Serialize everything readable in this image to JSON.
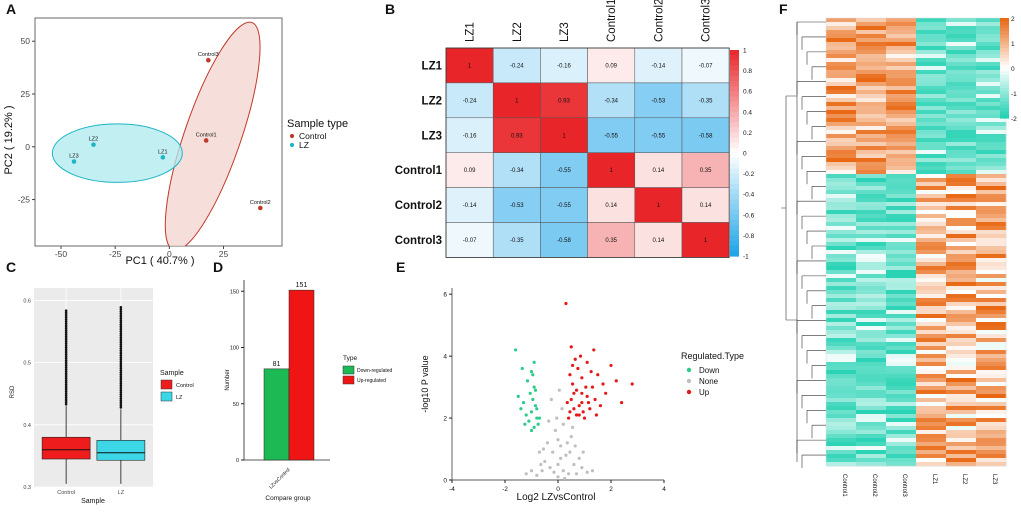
{
  "panel_labels": [
    "A",
    "B",
    "C",
    "D",
    "E",
    "F"
  ],
  "chart_data": [
    {
      "panel": "A",
      "type": "scatter",
      "xlabel": "PC1 ( 40.7% )",
      "ylabel": "PC2 ( 19.2% )",
      "xlim": [
        -62,
        52
      ],
      "ylim": [
        -47,
        61
      ],
      "xticks": [
        -50,
        -25,
        0,
        25
      ],
      "yticks": [
        -25,
        0,
        25,
        50
      ],
      "legend_title": "Sample type",
      "legend": [
        {
          "name": "Control",
          "color": "#c0392b",
          "fill": "#f3d3cf"
        },
        {
          "name": "LZ",
          "color": "#1fb5c5",
          "fill": "#aee9ee"
        }
      ],
      "points": [
        {
          "label": "Control3",
          "x": 18,
          "y": 41,
          "group": "Control"
        },
        {
          "label": "Control1",
          "x": 17,
          "y": 3,
          "group": "Control"
        },
        {
          "label": "Control2",
          "x": 42,
          "y": -29,
          "group": "Control"
        },
        {
          "label": "LZ2",
          "x": -35,
          "y": 1,
          "group": "LZ"
        },
        {
          "label": "LZ3",
          "x": -44,
          "y": -7,
          "group": "LZ"
        },
        {
          "label": "LZ1",
          "x": -3,
          "y": -5,
          "group": "LZ"
        }
      ],
      "ellipses": [
        {
          "group": "Control",
          "cx": 20,
          "cy": 5,
          "rx_data": 57,
          "ry_data": 13,
          "angle_deg": 71
        },
        {
          "group": "LZ",
          "cx": -24,
          "cy": -3,
          "rx_data": 30,
          "ry_data": 13.5,
          "angle_deg": 0
        }
      ]
    },
    {
      "panel": "B",
      "type": "heatmap",
      "labels": [
        "LZ1",
        "LZ2",
        "LZ3",
        "Control1",
        "Control2",
        "Control3"
      ],
      "matrix": [
        [
          "1",
          "-0.24",
          "-0.16",
          "0.09",
          "-0.14",
          "-0.07"
        ],
        [
          "-0.24",
          "1",
          "0.93",
          "-0.34",
          "-0.53",
          "-0.35"
        ],
        [
          "-0.16",
          "0.93",
          "1",
          "-0.55",
          "-0.55",
          "-0.58"
        ],
        [
          "0.09",
          "-0.34",
          "-0.55",
          "1",
          "0.14",
          "0.35"
        ],
        [
          "-0.14",
          "-0.53",
          "-0.55",
          "0.14",
          "1",
          "0.14"
        ],
        [
          "-0.07",
          "-0.35",
          "-0.58",
          "0.35",
          "0.14",
          "1"
        ]
      ],
      "colorbar_ticks": [
        "1",
        "0.8",
        "0.6",
        "0.4",
        "0.2",
        "0",
        "-0.2",
        "-0.4",
        "-0.6",
        "-0.8",
        "-1"
      ],
      "colors": {
        "positive": "#e8262a",
        "zero": "#ffffff",
        "negative": "#1aa3e8"
      }
    },
    {
      "panel": "C",
      "type": "box",
      "xlabel": "Sample",
      "ylabel": "RSD",
      "ylim": [
        0.3,
        0.62
      ],
      "yticks": [
        "0.3",
        "0.4",
        "0.5",
        "0.6"
      ],
      "categories": [
        "Control",
        "LZ"
      ],
      "legend_title": "Sample",
      "legend": [
        {
          "name": "Control",
          "color": "#ee1c1c"
        },
        {
          "name": "LZ",
          "color": "#3bd7e6"
        }
      ],
      "boxes": [
        {
          "name": "Control",
          "whisker_low": 0.305,
          "q1": 0.345,
          "median": 0.36,
          "q3": 0.38,
          "whisker_high": 0.43,
          "outlier_max": 0.585,
          "color": "#ee1c1c"
        },
        {
          "name": "LZ",
          "whisker_low": 0.305,
          "q1": 0.343,
          "median": 0.355,
          "q3": 0.375,
          "whisker_high": 0.425,
          "outlier_max": 0.59,
          "color": "#3bd7e6"
        }
      ]
    },
    {
      "panel": "D",
      "type": "bar",
      "xlabel": "Compare group",
      "ylabel": "Number",
      "categories": [
        "LZvsControl"
      ],
      "ylim": [
        0,
        160
      ],
      "yticks": [
        "0",
        "50",
        "100",
        "150"
      ],
      "legend_title": "Type",
      "series": [
        {
          "name": "Down-regulated",
          "values": [
            81
          ],
          "label": "81",
          "color": "#1db954"
        },
        {
          "name": "Up-regulated",
          "values": [
            151
          ],
          "label": "151",
          "color": "#f01515"
        }
      ]
    },
    {
      "panel": "E",
      "type": "scatter",
      "xlabel": "Log2 LZvsControl",
      "ylabel": "-log10 P value",
      "xlim": [
        -4,
        4
      ],
      "ylim": [
        0,
        6.2
      ],
      "xticks": [
        "-4",
        "-2",
        "0",
        "2",
        "4"
      ],
      "yticks": [
        "0",
        "2",
        "4",
        "6"
      ],
      "legend_title": "Regulated.Type",
      "legend": [
        {
          "name": "Down",
          "color": "#2ecc8a"
        },
        {
          "name": "None",
          "color": "#bfbfbf"
        },
        {
          "name": "Up",
          "color": "#e41a1a"
        }
      ],
      "points_none": [
        [
          0.0,
          0.1
        ],
        [
          0.2,
          0.3
        ],
        [
          -0.3,
          0.4
        ],
        [
          0.4,
          0.2
        ],
        [
          -0.5,
          0.6
        ],
        [
          0.6,
          0.5
        ],
        [
          -0.2,
          0.9
        ],
        [
          0.1,
          1.1
        ],
        [
          0.3,
          0.8
        ],
        [
          -0.4,
          1.2
        ],
        [
          0.5,
          1.4
        ],
        [
          -0.1,
          1.6
        ],
        [
          0.2,
          1.8
        ],
        [
          0.0,
          0.5
        ],
        [
          -0.6,
          0.3
        ],
        [
          0.7,
          0.2
        ],
        [
          -0.7,
          0.9
        ],
        [
          0.8,
          0.7
        ],
        [
          -0.8,
          0.15
        ],
        [
          0.9,
          0.4
        ],
        [
          -1.0,
          0.3
        ],
        [
          1.1,
          0.25
        ],
        [
          -0.35,
          1.9
        ],
        [
          0.15,
          2.3
        ],
        [
          -0.25,
          2.6
        ],
        [
          0.05,
          2.9
        ],
        [
          0.35,
          1.2
        ],
        [
          -0.55,
          1.0
        ],
        [
          0.45,
          0.9
        ],
        [
          0.25,
          0.05
        ],
        [
          -0.15,
          0.25
        ],
        [
          0.55,
          1.7
        ],
        [
          -1.2,
          0.2
        ],
        [
          1.3,
          0.3
        ],
        [
          0.0,
          1.3
        ],
        [
          0.1,
          0.7
        ],
        [
          -0.05,
          2.0
        ],
        [
          0.65,
          1.1
        ],
        [
          -0.65,
          0.5
        ],
        [
          0.95,
          0.9
        ]
      ],
      "points_down": [
        [
          -0.9,
          1.7
        ],
        [
          -0.8,
          2.0
        ],
        [
          -1.0,
          2.2
        ],
        [
          -0.85,
          2.4
        ],
        [
          -1.1,
          1.9
        ],
        [
          -0.95,
          2.6
        ],
        [
          -1.2,
          2.1
        ],
        [
          -0.75,
          1.8
        ],
        [
          -1.05,
          2.8
        ],
        [
          -0.9,
          3.0
        ],
        [
          -1.3,
          2.5
        ],
        [
          -0.8,
          2.3
        ],
        [
          -1.0,
          1.6
        ],
        [
          -1.15,
          3.2
        ],
        [
          -0.95,
          3.4
        ],
        [
          -1.25,
          1.8
        ],
        [
          -0.85,
          2.9
        ],
        [
          -1.4,
          2.3
        ],
        [
          -0.7,
          2.0
        ],
        [
          -1.35,
          3.6
        ],
        [
          -0.9,
          3.8
        ],
        [
          -1.5,
          2.7
        ],
        [
          -1.0,
          3.5
        ],
        [
          -1.6,
          4.2
        ]
      ],
      "points_up": [
        [
          0.4,
          2.0
        ],
        [
          0.6,
          2.3
        ],
        [
          0.5,
          2.6
        ],
        [
          0.8,
          2.1
        ],
        [
          0.7,
          2.9
        ],
        [
          0.9,
          2.5
        ],
        [
          1.0,
          2.0
        ],
        [
          0.55,
          3.1
        ],
        [
          1.1,
          2.7
        ],
        [
          0.45,
          3.4
        ],
        [
          0.75,
          3.6
        ],
        [
          1.2,
          2.3
        ],
        [
          0.65,
          3.9
        ],
        [
          1.3,
          3.0
        ],
        [
          0.9,
          3.3
        ],
        [
          1.4,
          2.6
        ],
        [
          0.5,
          4.3
        ],
        [
          1.5,
          3.4
        ],
        [
          0.85,
          4.0
        ],
        [
          1.1,
          3.8
        ],
        [
          1.6,
          2.4
        ],
        [
          0.6,
          2.8
        ],
        [
          1.7,
          3.1
        ],
        [
          0.95,
          2.2
        ],
        [
          1.25,
          3.5
        ],
        [
          0.7,
          2.1
        ],
        [
          1.8,
          2.8
        ],
        [
          0.35,
          2.5
        ],
        [
          2.0,
          3.7
        ],
        [
          1.35,
          4.2
        ],
        [
          0.8,
          2.4
        ],
        [
          1.05,
          3.0
        ],
        [
          2.2,
          3.2
        ],
        [
          0.3,
          5.7
        ],
        [
          2.8,
          3.1
        ],
        [
          0.45,
          2.2
        ],
        [
          1.45,
          2.1
        ],
        [
          0.55,
          3.7
        ],
        [
          1.15,
          2.5
        ],
        [
          0.9,
          2.8
        ],
        [
          2.4,
          2.5
        ]
      ]
    },
    {
      "panel": "F",
      "type": "heatmap",
      "columns": [
        "Control1",
        "Control2",
        "Control3",
        "LZ1",
        "LZ2",
        "LZ3"
      ],
      "colorbar_ticks": [
        "2",
        "1",
        "0",
        "-1",
        "-2"
      ],
      "colors": {
        "high": "#e8650f",
        "mid": "#ffffff",
        "low": "#1dd0b0"
      }
    }
  ]
}
